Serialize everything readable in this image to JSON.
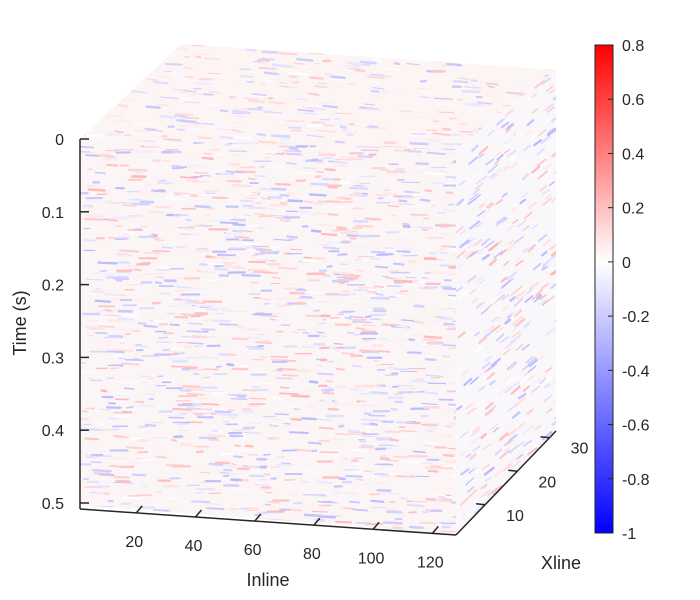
{
  "chart_data": {
    "type": "heatmap",
    "subtype": "3d-seismic-cube",
    "title": "",
    "axes": {
      "x": {
        "label": "Inline",
        "range": [
          1,
          128
        ],
        "ticks": [
          20,
          40,
          60,
          80,
          100,
          120
        ]
      },
      "y": {
        "label": "Xline",
        "range": [
          1,
          32
        ],
        "ticks": [
          10,
          20,
          30
        ]
      },
      "z": {
        "label": "Time (s)",
        "range": [
          0,
          0.5
        ],
        "reversed": true,
        "ticks": [
          0,
          0.1,
          0.2,
          0.3,
          0.4,
          0.5
        ]
      }
    },
    "colorbar": {
      "range": [
        -1,
        0.8
      ],
      "ticks": [
        0.8,
        0.6,
        0.4,
        0.2,
        0,
        -0.2,
        -0.4,
        -0.6,
        -0.8,
        -1
      ],
      "colormap": [
        "#0000ff",
        "#ffffff",
        "#ff0000"
      ],
      "placement": "right"
    },
    "colors": {
      "positive": "#ff0000",
      "zero": "#ffffff",
      "negative": "#0000ff",
      "axis": "#262626"
    },
    "grid": false
  }
}
